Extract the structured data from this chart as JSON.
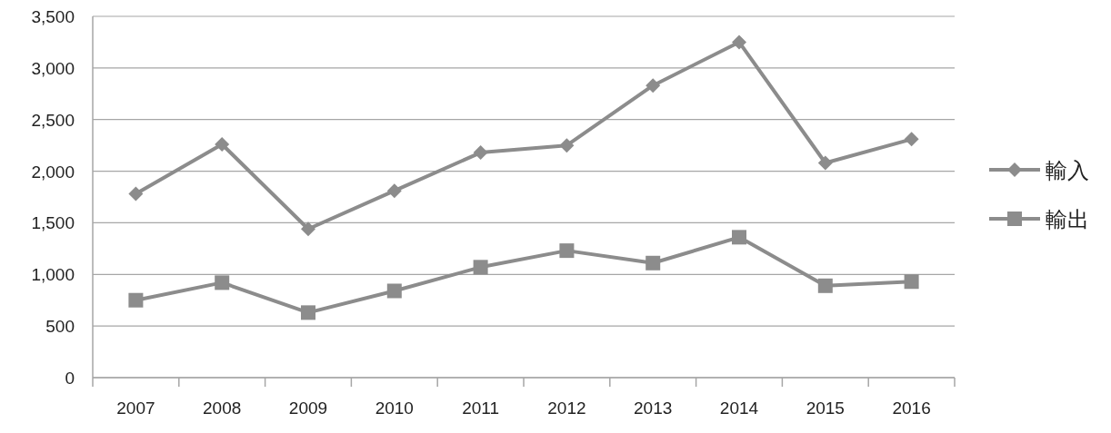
{
  "chart_data": {
    "type": "line",
    "categories": [
      "2007",
      "2008",
      "2009",
      "2010",
      "2011",
      "2012",
      "2013",
      "2014",
      "2015",
      "2016"
    ],
    "series": [
      {
        "name": "輸入",
        "color": "#8c8c8c",
        "marker": "diamond",
        "values": [
          1780,
          2260,
          1440,
          1810,
          2180,
          2250,
          2830,
          3250,
          2080,
          2310
        ]
      },
      {
        "name": "輸出",
        "color": "#8c8c8c",
        "marker": "square",
        "values": [
          750,
          920,
          630,
          840,
          1070,
          1230,
          1110,
          1360,
          890,
          930
        ]
      }
    ],
    "ylim": [
      0,
      3500
    ],
    "yticks": [
      0,
      500,
      {
        "value": 1000,
        "label": "1,000"
      },
      {
        "value": 1500,
        "label": "1,500"
      },
      {
        "value": 2000,
        "label": "2,000"
      },
      {
        "value": 2500,
        "label": "2,500"
      },
      {
        "value": 3000,
        "label": "3,000"
      },
      {
        "value": 3500,
        "label": "3,500"
      }
    ],
    "grid": "y",
    "legend": "right"
  }
}
